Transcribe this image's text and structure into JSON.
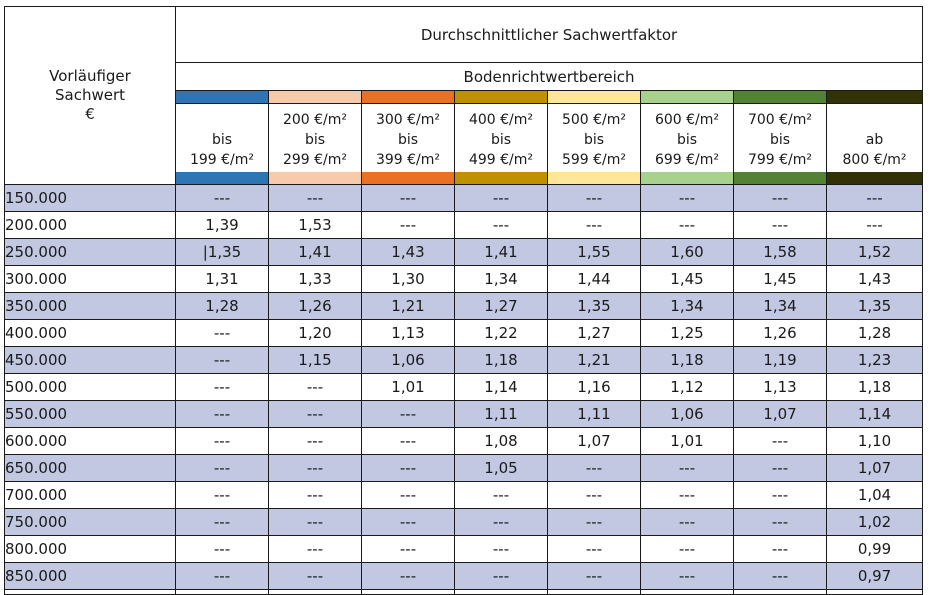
{
  "header": {
    "corner_lines": [
      "Vorläufiger",
      "Sachwert",
      "€"
    ],
    "title": "Durchschnittlicher Sachwertfaktor",
    "subtitle": "Bodenrichtwertbereich"
  },
  "ranges": [
    {
      "lines": [
        "bis",
        "199 €/m²"
      ],
      "color": "#2e75b6"
    },
    {
      "lines": [
        "200 €/m²",
        "bis",
        "299 €/m²"
      ],
      "color": "#f7caac"
    },
    {
      "lines": [
        "300 €/m²",
        "bis",
        "399 €/m²"
      ],
      "color": "#ea7124"
    },
    {
      "lines": [
        "400 €/m²",
        "bis",
        "499 €/m²"
      ],
      "color": "#bf9000"
    },
    {
      "lines": [
        "500 €/m²",
        "bis",
        "599 €/m²"
      ],
      "color": "#ffe699"
    },
    {
      "lines": [
        "600 €/m²",
        "bis",
        "699 €/m²"
      ],
      "color": "#a9d18e"
    },
    {
      "lines": [
        "700 €/m²",
        "bis",
        "799 €/m²"
      ],
      "color": "#548235"
    },
    {
      "lines": [
        "ab",
        "800 €/m²"
      ],
      "color": "#323207"
    }
  ],
  "colors": {
    "row_shade": "#c2c8e2",
    "border": "#1a1a1a"
  },
  "rows": [
    {
      "label": "150.000",
      "values": [
        "---",
        "---",
        "---",
        "---",
        "---",
        "---",
        "---",
        "---"
      ]
    },
    {
      "label": "200.000",
      "values": [
        "1,39",
        "1,53",
        "---",
        "---",
        "---",
        "---",
        "---",
        "---"
      ]
    },
    {
      "label": "250.000",
      "values": [
        "|1,35",
        "1,41",
        "1,43",
        "1,41",
        "1,55",
        "1,60",
        "1,58",
        "1,52"
      ]
    },
    {
      "label": "300.000",
      "values": [
        "1,31",
        "1,33",
        "1,30",
        "1,34",
        "1,44",
        "1,45",
        "1,45",
        "1,43"
      ]
    },
    {
      "label": "350.000",
      "values": [
        "1,28",
        "1,26",
        "1,21",
        "1,27",
        "1,35",
        "1,34",
        "1,34",
        "1,35"
      ]
    },
    {
      "label": "400.000",
      "values": [
        "---",
        "1,20",
        "1,13",
        "1,22",
        "1,27",
        "1,25",
        "1,26",
        "1,28"
      ]
    },
    {
      "label": "450.000",
      "values": [
        "---",
        "1,15",
        "1,06",
        "1,18",
        "1,21",
        "1,18",
        "1,19",
        "1,23"
      ]
    },
    {
      "label": "500.000",
      "values": [
        "---",
        "---",
        "1,01",
        "1,14",
        "1,16",
        "1,12",
        "1,13",
        "1,18"
      ]
    },
    {
      "label": "550.000",
      "values": [
        "---",
        "---",
        "---",
        "1,11",
        "1,11",
        "1,06",
        "1,07",
        "1,14"
      ]
    },
    {
      "label": "600.000",
      "values": [
        "---",
        "---",
        "---",
        "1,08",
        "1,07",
        "1,01",
        "---",
        "1,10"
      ]
    },
    {
      "label": "650.000",
      "values": [
        "---",
        "---",
        "---",
        "1,05",
        "---",
        "---",
        "---",
        "1,07"
      ]
    },
    {
      "label": "700.000",
      "values": [
        "---",
        "---",
        "---",
        "---",
        "---",
        "---",
        "---",
        "1,04"
      ]
    },
    {
      "label": "750.000",
      "values": [
        "---",
        "---",
        "---",
        "---",
        "---",
        "---",
        "---",
        "1,02"
      ]
    },
    {
      "label": "800.000",
      "values": [
        "---",
        "---",
        "---",
        "---",
        "---",
        "---",
        "---",
        "0,99"
      ]
    },
    {
      "label": "850.000",
      "values": [
        "---",
        "---",
        "---",
        "---",
        "---",
        "---",
        "---",
        "0,97"
      ]
    }
  ]
}
